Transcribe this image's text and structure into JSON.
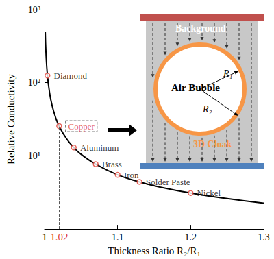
{
  "chart_data": {
    "type": "line",
    "x_label": "Thickness Ratio R₂/R₁",
    "y_label": "Relative Conductivity",
    "log": "y",
    "grid": false,
    "xlim": [
      1,
      1.3
    ],
    "xticks": [
      1,
      1.1,
      1.2,
      1.3
    ],
    "ylim": [
      1,
      1000
    ],
    "yticks": [
      {
        "value": 10,
        "label": "10¹"
      },
      {
        "value": 100,
        "label": "10²"
      },
      {
        "value": 1000,
        "label": "10³"
      }
    ],
    "series": [
      {
        "type": "line",
        "color": "#000000",
        "line_style": "solid",
        "x": [
          1.001,
          1.002,
          1.004,
          1.007,
          1.01,
          1.015,
          1.02,
          1.03,
          1.04,
          1.05,
          1.07,
          1.1,
          1.13,
          1.16,
          1.2,
          1.25,
          1.3
        ],
        "values": [
          500,
          250,
          125,
          72,
          50.5,
          33.8,
          25.5,
          17.2,
          13,
          10.5,
          7.7,
          5.5,
          4.4,
          3.7,
          3.1,
          2.6,
          2.25
        ]
      },
      {
        "type": "scatter",
        "color": "#e03c31",
        "marker": "circle",
        "labels": [
          "Diamond",
          "Copper",
          "Aluminum",
          "Brass",
          "Iron",
          "Solder Paste",
          "Nickel"
        ],
        "x": [
          1.004,
          1.02,
          1.04,
          1.07,
          1.1,
          1.13,
          1.2
        ],
        "values": [
          125,
          25.5,
          13,
          7.7,
          5.5,
          4.4,
          3.1
        ]
      }
    ],
    "highlight": {
      "name": "Copper",
      "x": 1.02,
      "label": "1.02",
      "color": "#e03c31",
      "line_style": "dashed"
    },
    "inset": {
      "background": "Background",
      "bubble": "Air Bubble",
      "cloak": "3D Cloak",
      "r1": "R₁",
      "r2": "R₂"
    }
  }
}
